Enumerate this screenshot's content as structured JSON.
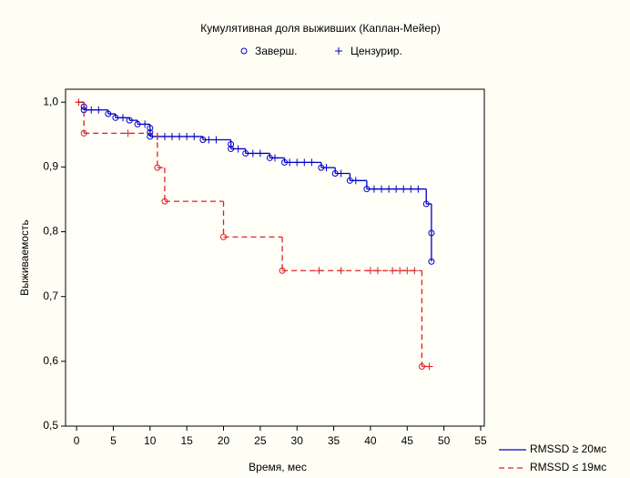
{
  "chart_data": {
    "type": "kaplan-meier",
    "title": "Кумулятивная доля выживших (Каплан-Мейер)",
    "marker_legend": {
      "event": "Заверш.",
      "censored": "Цензурир."
    },
    "xlabel": "Время, мес",
    "ylabel": "Выживаемость",
    "xlim": [
      -1.5,
      55.5
    ],
    "ylim": [
      0.5,
      1.02
    ],
    "xticks": [
      0,
      5,
      10,
      15,
      20,
      25,
      30,
      35,
      40,
      45,
      50,
      55
    ],
    "yticks": [
      {
        "value": 0.5,
        "label": "0,5"
      },
      {
        "value": 0.6,
        "label": "0,6"
      },
      {
        "value": 0.7,
        "label": "0,7"
      },
      {
        "value": 0.8,
        "label": "0,8"
      },
      {
        "value": 0.9,
        "label": "0,9"
      },
      {
        "value": 1.0,
        "label": "1,0"
      }
    ],
    "series": [
      {
        "name": "RMSSD ≥ 20мс",
        "color": "#0000cc",
        "dash": false,
        "x": [
          0,
          1,
          4.3,
          5.3,
          7.2,
          8.3,
          10,
          17.2,
          21,
          23,
          26.3,
          28.3,
          33.3,
          35.2,
          37.2,
          39.5,
          47.6,
          48.3
        ],
        "values": [
          1.0,
          0.988,
          0.982,
          0.976,
          0.972,
          0.966,
          0.947,
          0.942,
          0.928,
          0.921,
          0.914,
          0.907,
          0.899,
          0.89,
          0.879,
          0.866,
          0.843,
          0.754
        ],
        "events": {
          "x": [
            1,
            1,
            4.3,
            5.3,
            7.2,
            8.3,
            10,
            10,
            10,
            17.2,
            21,
            21,
            23,
            26.3,
            28.3,
            33.3,
            35.2,
            37.2,
            39.5,
            47.6,
            48.3,
            48.3
          ],
          "values": [
            0.993,
            0.988,
            0.982,
            0.976,
            0.972,
            0.966,
            0.96,
            0.953,
            0.947,
            0.942,
            0.935,
            0.928,
            0.921,
            0.914,
            0.907,
            0.899,
            0.89,
            0.879,
            0.866,
            0.843,
            0.798,
            0.754
          ]
        },
        "censored": {
          "x": [
            2,
            3,
            6.3,
            9.3,
            11,
            12,
            13,
            14,
            15,
            16,
            18,
            19,
            22,
            24,
            25,
            27,
            29,
            30,
            31,
            32,
            34,
            36,
            38,
            40.5,
            41.5,
            42.5,
            43.5,
            44.5,
            45.5,
            46.5
          ],
          "values": [
            0.988,
            0.988,
            0.976,
            0.966,
            0.947,
            0.947,
            0.947,
            0.947,
            0.947,
            0.947,
            0.942,
            0.942,
            0.928,
            0.921,
            0.921,
            0.914,
            0.907,
            0.907,
            0.907,
            0.907,
            0.899,
            0.89,
            0.879,
            0.866,
            0.866,
            0.866,
            0.866,
            0.866,
            0.866,
            0.866
          ]
        }
      },
      {
        "name": "RMSSD ≤ 19мс",
        "color": "#e02020",
        "dash": true,
        "x": [
          0,
          1,
          11,
          12,
          20,
          28,
          47,
          48
        ],
        "values": [
          1.0,
          0.952,
          0.899,
          0.847,
          0.792,
          0.74,
          0.592,
          0.592
        ],
        "events": {
          "x": [
            1,
            11,
            12,
            20,
            28,
            47
          ],
          "values": [
            0.952,
            0.899,
            0.847,
            0.792,
            0.74,
            0.592
          ]
        },
        "censored": {
          "x": [
            0.3,
            7,
            33,
            36,
            40,
            41,
            43,
            44,
            45,
            46,
            48
          ],
          "values": [
            1.0,
            0.952,
            0.74,
            0.74,
            0.74,
            0.74,
            0.74,
            0.74,
            0.74,
            0.74,
            0.592
          ]
        }
      }
    ]
  }
}
